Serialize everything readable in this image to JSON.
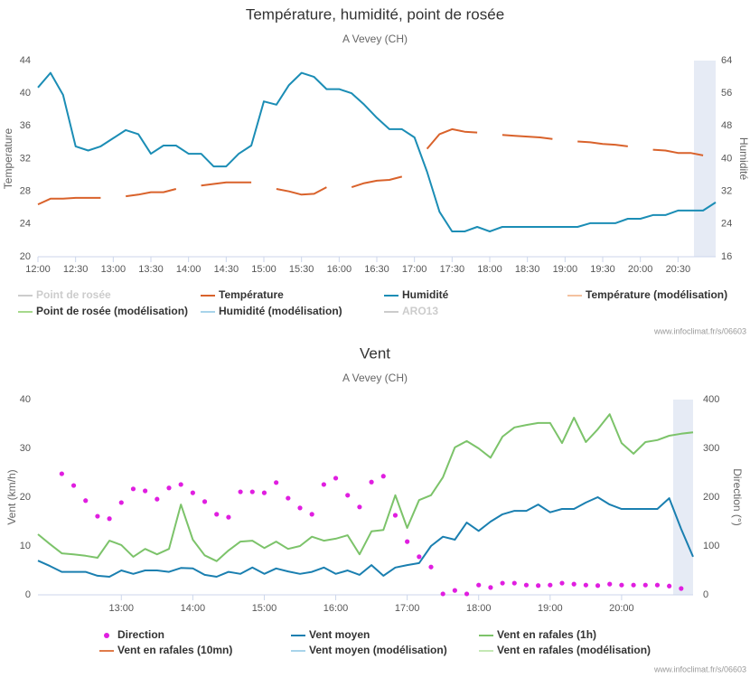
{
  "chart_data": [
    {
      "type": "line",
      "title": "Température, humidité, point de rosée",
      "subtitle": "A Vevey (CH)",
      "y_label": "Temperature",
      "y2_label": "Humidité",
      "credits": "www.infoclimat.fr/s/06603",
      "x": [
        "12:00",
        "12:10",
        "12:20",
        "12:30",
        "12:40",
        "12:50",
        "13:00",
        "13:10",
        "13:20",
        "13:30",
        "13:40",
        "13:50",
        "14:00",
        "14:10",
        "14:20",
        "14:30",
        "14:40",
        "14:50",
        "15:00",
        "15:10",
        "15:20",
        "15:30",
        "15:40",
        "15:50",
        "16:00",
        "16:10",
        "16:20",
        "16:30",
        "16:40",
        "16:50",
        "17:00",
        "17:10",
        "17:20",
        "17:30",
        "17:40",
        "17:50",
        "18:00",
        "18:10",
        "18:20",
        "18:30",
        "18:40",
        "18:50",
        "19:00",
        "19:10",
        "19:20",
        "19:30",
        "19:40",
        "19:50",
        "20:00",
        "20:10",
        "20:20",
        "20:30",
        "20:40",
        "20:50",
        "21:00"
      ],
      "xlim": [
        "12:00",
        "21:00"
      ],
      "xticks": [
        "12:00",
        "12:30",
        "13:00",
        "13:30",
        "14:00",
        "14:30",
        "15:00",
        "15:30",
        "16:00",
        "16:30",
        "17:00",
        "17:30",
        "18:00",
        "18:30",
        "19:00",
        "19:30",
        "20:00",
        "20:30"
      ],
      "ylim": [
        20,
        44
      ],
      "yticks": [
        20,
        24,
        28,
        32,
        36,
        40,
        44
      ],
      "y2lim": [
        16,
        64
      ],
      "y2ticks": [
        16,
        24,
        32,
        40,
        48,
        56,
        64
      ],
      "series": [
        {
          "name": "Point de rosée",
          "color": "#a6d98c",
          "visible": false
        },
        {
          "name": "Température",
          "color": "#d9622b",
          "values": [
            26.4,
            27.1,
            27.1,
            27.2,
            27.2,
            27.2,
            null,
            27.4,
            27.6,
            27.9,
            27.9,
            28.3,
            null,
            28.7,
            28.9,
            29.1,
            29.1,
            29.1,
            null,
            28.3,
            28.0,
            27.6,
            27.7,
            28.5,
            null,
            28.5,
            29.0,
            29.3,
            29.4,
            29.8,
            null,
            33.2,
            35.0,
            35.6,
            35.3,
            35.2,
            null,
            34.9,
            34.8,
            34.7,
            34.6,
            34.4,
            null,
            34.1,
            34.0,
            33.8,
            33.7,
            33.5,
            null,
            33.1,
            33.0,
            32.7,
            32.7,
            32.4,
            null
          ]
        },
        {
          "name": "Humidité",
          "color": "#1b8db5",
          "axis": "y2",
          "values": [
            57.4,
            61,
            55.6,
            43,
            42,
            43,
            45,
            47,
            46,
            41.2,
            43.2,
            43.2,
            41.2,
            41.2,
            38.1,
            38.1,
            41.2,
            43.2,
            54,
            53.2,
            58,
            61,
            60,
            57,
            57,
            56,
            53.2,
            50,
            47.2,
            47.2,
            45.2,
            36.8,
            27,
            22.2,
            22.2,
            23.3,
            22.2,
            23.3,
            23.3,
            23.3,
            23.3,
            23.3,
            23.3,
            23.3,
            24.2,
            24.2,
            24.2,
            25.3,
            25.3,
            26.2,
            26.2,
            27.3,
            27.3,
            27.3,
            29.3
          ]
        },
        {
          "name": "Température (modélisation)",
          "color": "#f4c2a0"
        },
        {
          "name": "Point de rosée (modélisation)",
          "color": "#a6d98c"
        },
        {
          "name": "Humidité (modélisation)",
          "color": "#a8d4ea"
        },
        {
          "name": "ARO13",
          "color": "#e8e8e8",
          "visible": false
        }
      ]
    },
    {
      "type": "line",
      "title": "Vent",
      "subtitle": "A Vevey (CH)",
      "y_label": "Vent (km/h)",
      "y2_label": "Direction (°)",
      "credits": "www.infoclimat.fr/s/06603",
      "x": [
        "11:50",
        "12:00",
        "12:10",
        "12:20",
        "12:30",
        "12:40",
        "12:50",
        "13:00",
        "13:10",
        "13:20",
        "13:30",
        "13:40",
        "13:50",
        "14:00",
        "14:10",
        "14:20",
        "14:30",
        "14:40",
        "14:50",
        "15:00",
        "15:10",
        "15:20",
        "15:30",
        "15:40",
        "15:50",
        "16:00",
        "16:10",
        "16:20",
        "16:30",
        "16:40",
        "16:50",
        "17:00",
        "17:10",
        "17:20",
        "17:30",
        "17:40",
        "17:50",
        "18:00",
        "18:10",
        "18:20",
        "18:30",
        "18:40",
        "18:50",
        "19:00",
        "19:10",
        "19:20",
        "19:30",
        "19:40",
        "19:50",
        "20:00",
        "20:10",
        "20:20",
        "20:30",
        "20:40",
        "20:50",
        "21:00"
      ],
      "xlim": [
        "11:50",
        "21:00"
      ],
      "xticks": [
        "13:00",
        "14:00",
        "15:00",
        "16:00",
        "17:00",
        "18:00",
        "19:00",
        "20:00"
      ],
      "ylim": [
        0,
        40
      ],
      "yticks": [
        0,
        10,
        20,
        30,
        40
      ],
      "y2lim": [
        0,
        400
      ],
      "y2ticks": [
        0,
        100,
        200,
        300,
        400
      ],
      "series": [
        {
          "name": "Direction",
          "color": "#e01ee0",
          "type": "scatter",
          "axis": "y2",
          "values": [
            null,
            null,
            248,
            224,
            193,
            161,
            156,
            189,
            217,
            213,
            196,
            219,
            226,
            209,
            191,
            165,
            159,
            211,
            211,
            209,
            230,
            198,
            178,
            165,
            226,
            239,
            204,
            180,
            231,
            243,
            163,
            109,
            78,
            57,
            2,
            9,
            2,
            20,
            15,
            24,
            24,
            20,
            19,
            20,
            24,
            22,
            20,
            19,
            22,
            20,
            20,
            20,
            20,
            18,
            13,
            null
          ]
        },
        {
          "name": "Vent moyen",
          "color": "#1a7fb0",
          "values": [
            7.0,
            5.9,
            4.7,
            4.7,
            4.7,
            3.9,
            3.7,
            5.0,
            4.3,
            5.0,
            5.0,
            4.7,
            5.5,
            5.4,
            4.1,
            3.7,
            4.7,
            4.3,
            5.6,
            4.3,
            5.4,
            4.8,
            4.3,
            4.7,
            5.6,
            4.3,
            5.0,
            4.1,
            6.1,
            3.9,
            5.6,
            6.1,
            6.5,
            10.0,
            11.9,
            11.3,
            14.8,
            13.1,
            15.0,
            16.5,
            17.2,
            17.2,
            18.5,
            16.9,
            17.6,
            17.6,
            18.9,
            20.0,
            18.5,
            17.6,
            17.6,
            17.6,
            17.6,
            19.8,
            13.5,
            7.8
          ]
        },
        {
          "name": "Vent en rafales (1h)",
          "color": "#7cc36a",
          "values": [
            12.4,
            10.4,
            8.5,
            8.3,
            8.0,
            7.6,
            11.1,
            10.2,
            7.8,
            9.4,
            8.3,
            9.4,
            18.5,
            11.3,
            8.1,
            6.9,
            9.1,
            10.9,
            11.1,
            9.6,
            10.9,
            9.4,
            10.0,
            11.9,
            11.1,
            11.5,
            12.2,
            8.3,
            13.0,
            13.3,
            20.4,
            13.7,
            19.4,
            20.4,
            24.1,
            30.2,
            31.5,
            30.0,
            28.1,
            32.4,
            34.3,
            34.8,
            35.2,
            35.2,
            31.1,
            36.3,
            31.3,
            33.9,
            37.0,
            31.1,
            28.9,
            31.3,
            31.7,
            32.6,
            33.0,
            33.3
          ]
        },
        {
          "name": "Vent en rafales (10mn)",
          "color": "#e07b4a"
        },
        {
          "name": "Vent moyen (modélisation)",
          "color": "#a8d4ea"
        },
        {
          "name": "Vent en rafales (modélisation)",
          "color": "#c4e8b4"
        }
      ]
    }
  ]
}
